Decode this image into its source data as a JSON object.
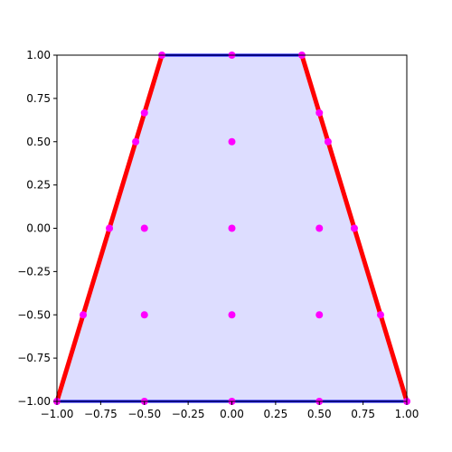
{
  "chart_data": {
    "type": "polygon",
    "fill": {
      "color": "#ddddff",
      "x": [
        -1,
        1,
        0.4,
        -0.4
      ],
      "y": [
        -1,
        -1,
        1,
        1
      ]
    },
    "edges": [
      {
        "color": "#ff0000",
        "x": [
          -1,
          -0.4
        ],
        "y": [
          -1,
          1
        ]
      },
      {
        "color": "#ff0000",
        "x": [
          1,
          0.4
        ],
        "y": [
          -1,
          1
        ]
      },
      {
        "color": "#0000ff",
        "x": [
          -1,
          1
        ],
        "y": [
          -1,
          -1
        ]
      },
      {
        "color": "#0000ff",
        "x": [
          -0.4,
          0.4
        ],
        "y": [
          1,
          1
        ]
      }
    ],
    "points": {
      "color": "#ff00ff",
      "x": [
        -0.4,
        0,
        0.4,
        -0.5,
        -0.55,
        -0.7,
        -0.85,
        -1,
        0.5,
        0.55,
        0.7,
        0.85,
        1,
        0,
        -0.5,
        0,
        0.5,
        -0.5,
        0,
        0.5,
        -0.5,
        0,
        0.5
      ],
      "y": [
        1,
        1,
        1,
        0.6667,
        0.5,
        0,
        -0.5,
        -1,
        0.6667,
        0.5,
        0,
        -0.5,
        -1,
        0.5,
        0,
        0,
        0,
        -0.5,
        -0.5,
        -0.5,
        -1,
        -1,
        -1
      ]
    },
    "xlim": [
      -1,
      1
    ],
    "ylim": [
      -1,
      1
    ],
    "xticks": [
      {
        "value": -1,
        "label": "−1.00"
      },
      {
        "value": -0.75,
        "label": "−0.75"
      },
      {
        "value": -0.5,
        "label": "−0.50"
      },
      {
        "value": -0.25,
        "label": "−0.25"
      },
      {
        "value": 0,
        "label": "0.00"
      },
      {
        "value": 0.25,
        "label": "0.25"
      },
      {
        "value": 0.5,
        "label": "0.50"
      },
      {
        "value": 0.75,
        "label": "0.75"
      },
      {
        "value": 1,
        "label": "1.00"
      }
    ],
    "yticks": [
      {
        "value": -1,
        "label": "−1.00"
      },
      {
        "value": -0.75,
        "label": "−0.75"
      },
      {
        "value": -0.5,
        "label": "−0.50"
      },
      {
        "value": -0.25,
        "label": "−0.25"
      },
      {
        "value": 0,
        "label": "0.00"
      },
      {
        "value": 0.25,
        "label": "0.25"
      },
      {
        "value": 0.5,
        "label": "0.50"
      },
      {
        "value": 0.75,
        "label": "0.75"
      },
      {
        "value": 1,
        "label": "1.00"
      }
    ]
  }
}
